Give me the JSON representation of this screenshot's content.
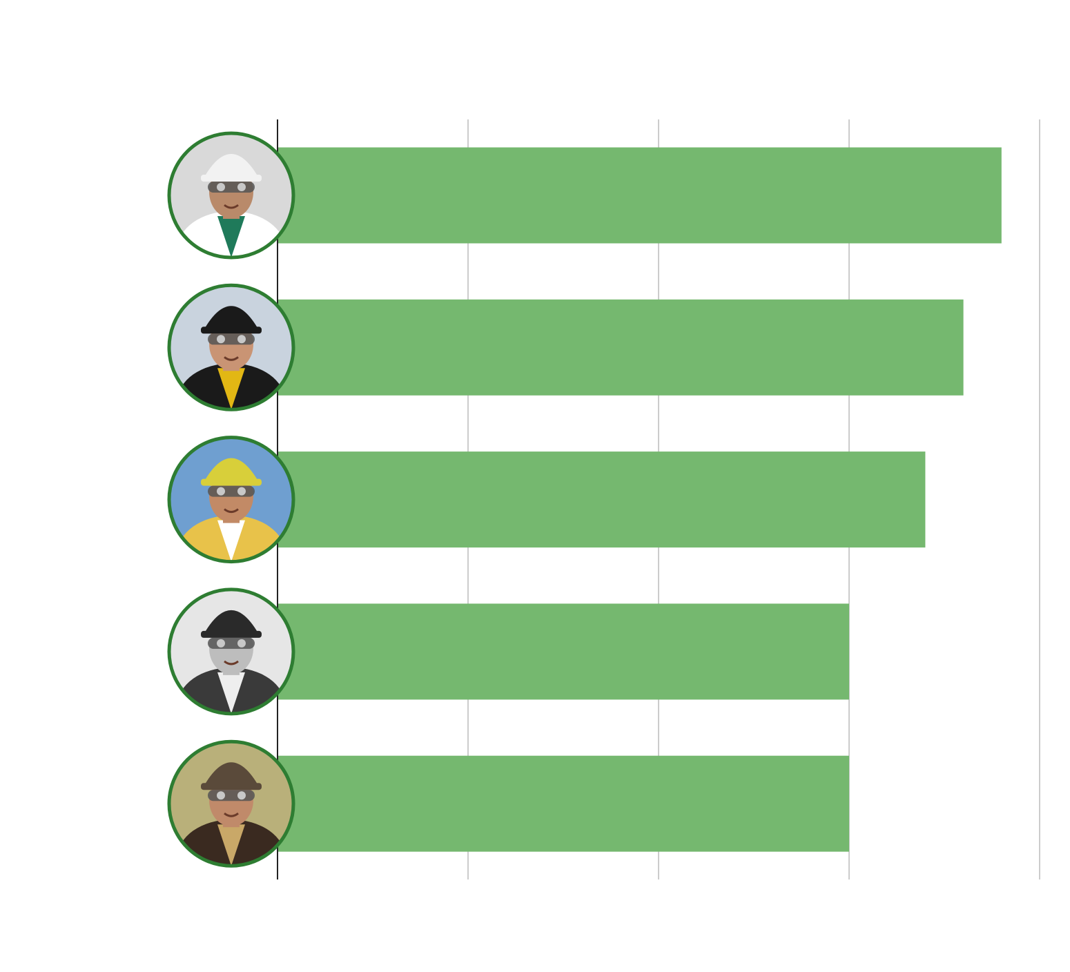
{
  "chart_data": {
    "type": "bar",
    "orientation": "horizontal",
    "categories": [
      "",
      "",
      "",
      "",
      ""
    ],
    "values": [
      3.8,
      3.6,
      3.4,
      3.0,
      3.0
    ],
    "xlim": [
      0,
      4
    ],
    "xticks": [
      0,
      1,
      2,
      3,
      4
    ],
    "grid": true,
    "title": "",
    "xlabel": "",
    "ylabel": "",
    "bar_color": "#75b86f",
    "marker_ring_color": "#2e7d32",
    "gridline_color": "#cccccc",
    "axis_color": "#222222",
    "markers": [
      {
        "icon": "jockey-white-helmet-icon",
        "helmet": "#f2f2f2",
        "silks": "#ffffff",
        "trim": "#1f7a5a",
        "bg": "#d9d9d9",
        "skin": "#b98a6a"
      },
      {
        "icon": "jockey-black-helmet-icon",
        "helmet": "#1a1a1a",
        "silks": "#1a1a1a",
        "trim": "#e2b714",
        "bg": "#c9d3de",
        "skin": "#c99474"
      },
      {
        "icon": "jockey-yellow-helmet-icon",
        "helmet": "#d8cf3a",
        "silks": "#e8c24a",
        "trim": "#ffffff",
        "bg": "#6f9fd0",
        "skin": "#c28a66"
      },
      {
        "icon": "jockey-vintage-bw-icon",
        "helmet": "#2a2a2a",
        "silks": "#3a3a3a",
        "trim": "#eeeeee",
        "bg": "#e6e6e6",
        "skin": "#bdbdbd"
      },
      {
        "icon": "jockey-muddy-helmet-icon",
        "helmet": "#5a4a3a",
        "silks": "#3a2a20",
        "trim": "#c9a868",
        "bg": "#b9b07a",
        "skin": "#c08a6a"
      }
    ]
  }
}
